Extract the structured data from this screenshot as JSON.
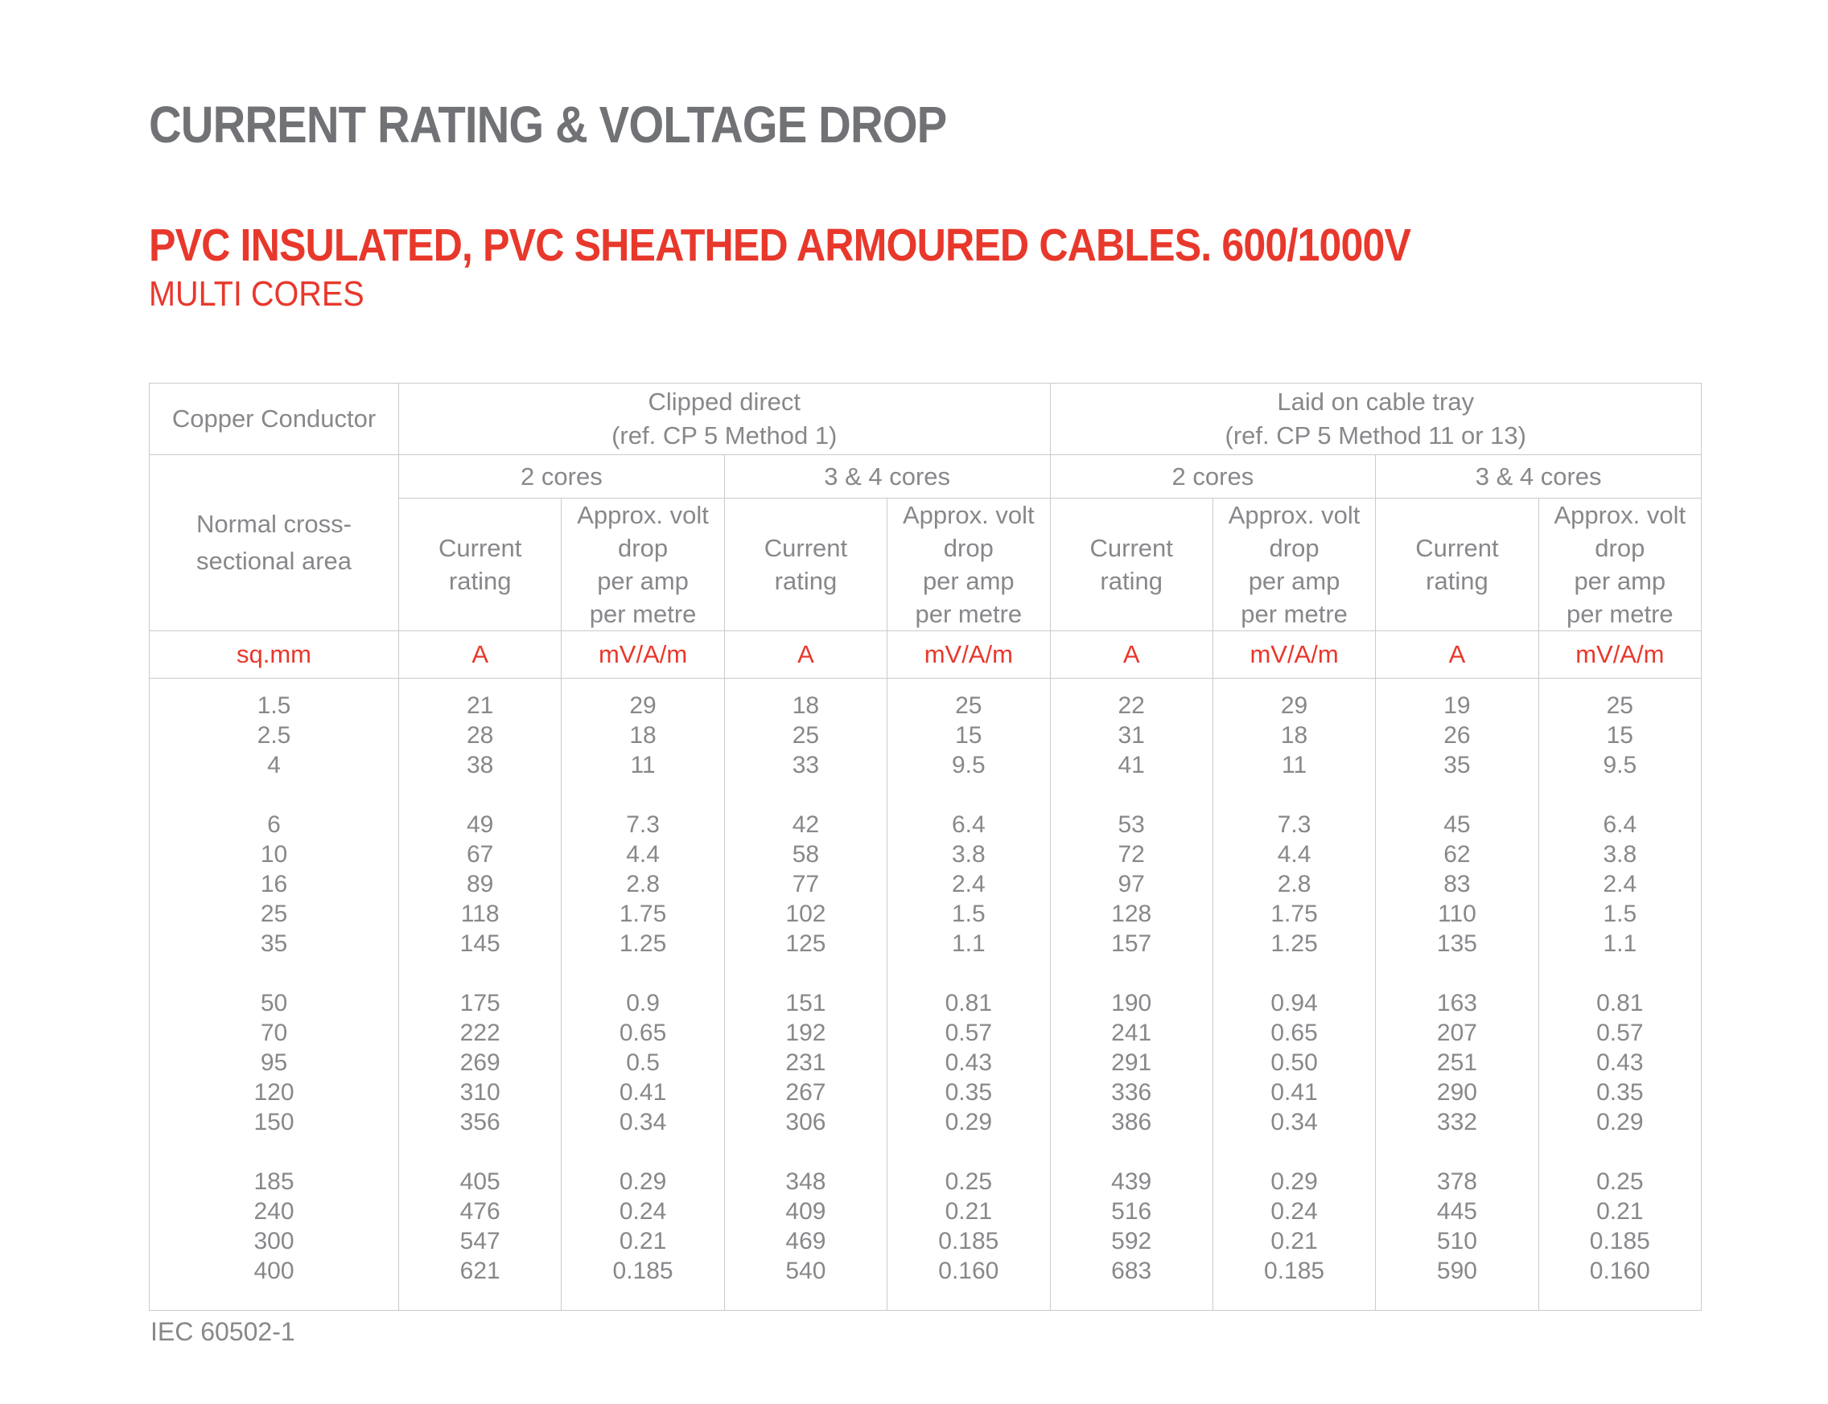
{
  "page": {
    "title": "CURRENT RATING & VOLTAGE DROP",
    "subtitle": "PVC INSULATED, PVC SHEATHED ARMOURED CABLES. 600/1000V",
    "subtitle_secondary": "MULTI CORES",
    "footer": "IEC 60502-1"
  },
  "colors": {
    "accent_red": "#E8382C",
    "title_gray": "#717275",
    "table_text_gray": "#87888B",
    "border_gray": "#C9CACB"
  },
  "table": {
    "header": {
      "copper_conductor": "Copper Conductor",
      "cross_section_lines": [
        "Normal cross-",
        "sectional area"
      ],
      "clipped_direct_lines": [
        "Clipped direct",
        "(ref. CP 5 Method 1)"
      ],
      "cable_tray_lines": [
        "Laid on cable tray",
        "(ref. CP 5 Method 11 or 13)"
      ],
      "cores_labels": [
        "2 cores",
        "3 & 4 cores",
        "2 cores",
        "3 & 4 cores"
      ],
      "current_rating_lines": [
        "Current",
        "rating"
      ],
      "volt_drop_lines": [
        "Approx. volt",
        "drop",
        "per amp",
        "per metre"
      ],
      "units": [
        "sq.mm",
        "A",
        "mV/A/m",
        "A",
        "mV/A/m",
        "A",
        "mV/A/m",
        "A",
        "mV/A/m"
      ]
    },
    "body": {
      "row_groups": [
        {
          "sizes": [
            "1.5",
            "2.5",
            "4"
          ],
          "clipped_2c_current": [
            "21",
            "28",
            "38"
          ],
          "clipped_2c_voltdrop": [
            "29",
            "18",
            "11"
          ],
          "clipped_34c_current": [
            "18",
            "25",
            "33"
          ],
          "clipped_34c_voltdrop": [
            "25",
            "15",
            "9.5"
          ],
          "tray_2c_current": [
            "22",
            "31",
            "41"
          ],
          "tray_2c_voltdrop": [
            "29",
            "18",
            "11"
          ],
          "tray_34c_current": [
            "19",
            "26",
            "35"
          ],
          "tray_34c_voltdrop": [
            "25",
            "15",
            "9.5"
          ]
        },
        {
          "sizes": [
            "6",
            "10",
            "16",
            "25",
            "35"
          ],
          "clipped_2c_current": [
            "49",
            "67",
            "89",
            "118",
            "145"
          ],
          "clipped_2c_voltdrop": [
            "7.3",
            "4.4",
            "2.8",
            "1.75",
            "1.25"
          ],
          "clipped_34c_current": [
            "42",
            "58",
            "77",
            "102",
            "125"
          ],
          "clipped_34c_voltdrop": [
            "6.4",
            "3.8",
            "2.4",
            "1.5",
            "1.1"
          ],
          "tray_2c_current": [
            "53",
            "72",
            "97",
            "128",
            "157"
          ],
          "tray_2c_voltdrop": [
            "7.3",
            "4.4",
            "2.8",
            "1.75",
            "1.25"
          ],
          "tray_34c_current": [
            "45",
            "62",
            "83",
            "110",
            "135"
          ],
          "tray_34c_voltdrop": [
            "6.4",
            "3.8",
            "2.4",
            "1.5",
            "1.1"
          ]
        },
        {
          "sizes": [
            "50",
            "70",
            "95",
            "120",
            "150"
          ],
          "clipped_2c_current": [
            "175",
            "222",
            "269",
            "310",
            "356"
          ],
          "clipped_2c_voltdrop": [
            "0.9",
            "0.65",
            "0.5",
            "0.41",
            "0.34"
          ],
          "clipped_34c_current": [
            "151",
            "192",
            "231",
            "267",
            "306"
          ],
          "clipped_34c_voltdrop": [
            "0.81",
            "0.57",
            "0.43",
            "0.35",
            "0.29"
          ],
          "tray_2c_current": [
            "190",
            "241",
            "291",
            "336",
            "386"
          ],
          "tray_2c_voltdrop": [
            "0.94",
            "0.65",
            "0.50",
            "0.41",
            "0.34"
          ],
          "tray_34c_current": [
            "163",
            "207",
            "251",
            "290",
            "332"
          ],
          "tray_34c_voltdrop": [
            "0.81",
            "0.57",
            "0.43",
            "0.35",
            "0.29"
          ]
        },
        {
          "sizes": [
            "185",
            "240",
            "300",
            "400"
          ],
          "clipped_2c_current": [
            "405",
            "476",
            "547",
            "621"
          ],
          "clipped_2c_voltdrop": [
            "0.29",
            "0.24",
            "0.21",
            "0.185"
          ],
          "clipped_34c_current": [
            "348",
            "409",
            "469",
            "540"
          ],
          "clipped_34c_voltdrop": [
            "0.25",
            "0.21",
            "0.185",
            "0.160"
          ],
          "tray_2c_current": [
            "439",
            "516",
            "592",
            "683"
          ],
          "tray_2c_voltdrop": [
            "0.29",
            "0.24",
            "0.21",
            "0.185"
          ],
          "tray_34c_current": [
            "378",
            "445",
            "510",
            "590"
          ],
          "tray_34c_voltdrop": [
            "0.25",
            "0.21",
            "0.185",
            "0.160"
          ]
        }
      ]
    }
  }
}
